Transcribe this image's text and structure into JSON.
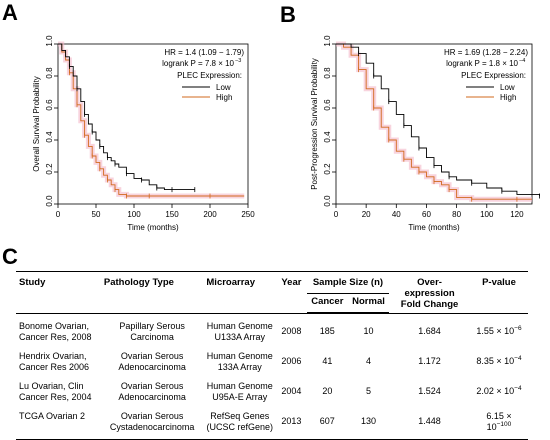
{
  "panels": {
    "a_letter": "A",
    "b_letter": "B",
    "c_letter": "C"
  },
  "chart_data": [
    {
      "type": "line",
      "panel": "A",
      "ylabel": "Overall Survival Probability",
      "xlabel": "Time (months)",
      "xlim": [
        0,
        250
      ],
      "ylim": [
        0,
        1.0
      ],
      "xticks": [
        "0",
        "50",
        "100",
        "150",
        "200",
        "250"
      ],
      "yticks": [
        "0.0",
        "0.2",
        "0.4",
        "0.6",
        "0.8",
        "1.0"
      ],
      "hr_text": "HR = 1.4 (1.09 − 1.79)",
      "p_text_prefix": "logrank P = 7.8 × 10",
      "p_text_exp": "−3",
      "legend_title": "PLEC Expression:",
      "legend_position": "right",
      "series": [
        {
          "name": "Low",
          "color": "#000000",
          "x": [
            0,
            5,
            10,
            15,
            20,
            25,
            30,
            35,
            40,
            45,
            50,
            55,
            60,
            65,
            70,
            75,
            80,
            90,
            100,
            110,
            120,
            130,
            140,
            150,
            160,
            180
          ],
          "y": [
            1.0,
            0.96,
            0.92,
            0.86,
            0.8,
            0.72,
            0.64,
            0.56,
            0.5,
            0.45,
            0.4,
            0.36,
            0.32,
            0.29,
            0.27,
            0.25,
            0.23,
            0.19,
            0.16,
            0.15,
            0.12,
            0.1,
            0.09,
            0.09,
            0.09,
            0.09
          ]
        },
        {
          "name": "High",
          "color": "#d2691e",
          "x": [
            0,
            5,
            10,
            15,
            20,
            25,
            30,
            35,
            40,
            45,
            50,
            55,
            60,
            65,
            70,
            75,
            80,
            90,
            100,
            120,
            150,
            200,
            245
          ],
          "y": [
            1.0,
            0.95,
            0.9,
            0.82,
            0.72,
            0.62,
            0.52,
            0.43,
            0.36,
            0.3,
            0.26,
            0.22,
            0.18,
            0.15,
            0.12,
            0.09,
            0.06,
            0.05,
            0.05,
            0.05,
            0.05,
            0.05,
            0.05
          ]
        }
      ]
    },
    {
      "type": "line",
      "panel": "B",
      "ylabel": "Post-Progression Survival Probability",
      "xlabel": "Time (months)",
      "xlim": [
        0,
        130
      ],
      "ylim": [
        0,
        1.0
      ],
      "xticks": [
        "0",
        "20",
        "40",
        "60",
        "80",
        "100",
        "120"
      ],
      "yticks": [
        "0.0",
        "0.2",
        "0.4",
        "0.6",
        "0.8",
        "1.0"
      ],
      "hr_text": "HR = 1.69 (1.28 − 2.24)",
      "p_text_prefix": "logrank P = 1.8 × 10",
      "p_text_exp": "−4",
      "legend_title": "PLEC Expression:",
      "legend_position": "right",
      "series": [
        {
          "name": "Low",
          "color": "#000000",
          "x": [
            0,
            5,
            10,
            15,
            20,
            25,
            30,
            35,
            40,
            45,
            50,
            55,
            60,
            65,
            70,
            75,
            80,
            90,
            100,
            110,
            120,
            135
          ],
          "y": [
            1.0,
            1.0,
            0.98,
            0.94,
            0.88,
            0.8,
            0.72,
            0.64,
            0.56,
            0.49,
            0.42,
            0.35,
            0.29,
            0.24,
            0.2,
            0.17,
            0.15,
            0.13,
            0.1,
            0.08,
            0.06,
            0.05
          ]
        },
        {
          "name": "High",
          "color": "#d2691e",
          "x": [
            0,
            5,
            10,
            15,
            20,
            25,
            30,
            35,
            40,
            45,
            50,
            55,
            60,
            65,
            70,
            75,
            80,
            90,
            100,
            120,
            130
          ],
          "y": [
            1.0,
            0.98,
            0.93,
            0.84,
            0.72,
            0.6,
            0.48,
            0.4,
            0.33,
            0.28,
            0.23,
            0.2,
            0.17,
            0.14,
            0.12,
            0.09,
            0.04,
            0.03,
            0.03,
            0.03,
            0.03
          ]
        }
      ]
    }
  ],
  "table": {
    "headers": {
      "study": "Study",
      "pathology": "Pathology Type",
      "microarray": "Microarray",
      "year": "Year",
      "sample_size": "Sample Size (n)",
      "cancer": "Cancer",
      "normal": "Normal",
      "fold_line1": "Over-expression",
      "fold_line2": "Fold Change",
      "pvalue": "P-value"
    },
    "rows": [
      {
        "study1": "Bonome Ovarian,",
        "study2": "Cancer Res, 2008",
        "path1": "Papillary Serous",
        "path2": "Carcinoma",
        "micro1": "Human Genome",
        "micro2": "U133A Array",
        "year": "2008",
        "cancer": "185",
        "normal": "10",
        "fold": "1.684",
        "p_base": "1.55 × 10",
        "p_exp": "−6"
      },
      {
        "study1": "Hendrix Ovarian,",
        "study2": "Cancer Res 2006",
        "path1": "Ovarian Serous",
        "path2": "Adenocarcinoma",
        "micro1": "Human Genome",
        "micro2": "133A Array",
        "year": "2006",
        "cancer": "41",
        "normal": "4",
        "fold": "1.172",
        "p_base": "8.35 × 10",
        "p_exp": "−4"
      },
      {
        "study1": "Lu Ovarian, Clin",
        "study2": "Cancer Res, 2004",
        "path1": "Ovarian Serous",
        "path2": "Adenocarcinoma",
        "micro1": "Human Genome",
        "micro2": "U95A-E Array",
        "year": "2004",
        "cancer": "20",
        "normal": "5",
        "fold": "1.524",
        "p_base": "2.02 × 10",
        "p_exp": "−4"
      },
      {
        "study1": "TCGA Ovarian 2",
        "study2": "",
        "path1": "Ovarian Serous",
        "path2": "Cystadenocarcinoma",
        "micro1": "RefSeq Genes",
        "micro2": "(UCSC refGene)",
        "year": "2013",
        "cancer": "607",
        "normal": "130",
        "fold": "1.448",
        "p_base": "6.15 × 10",
        "p_exp": "−100"
      }
    ]
  }
}
